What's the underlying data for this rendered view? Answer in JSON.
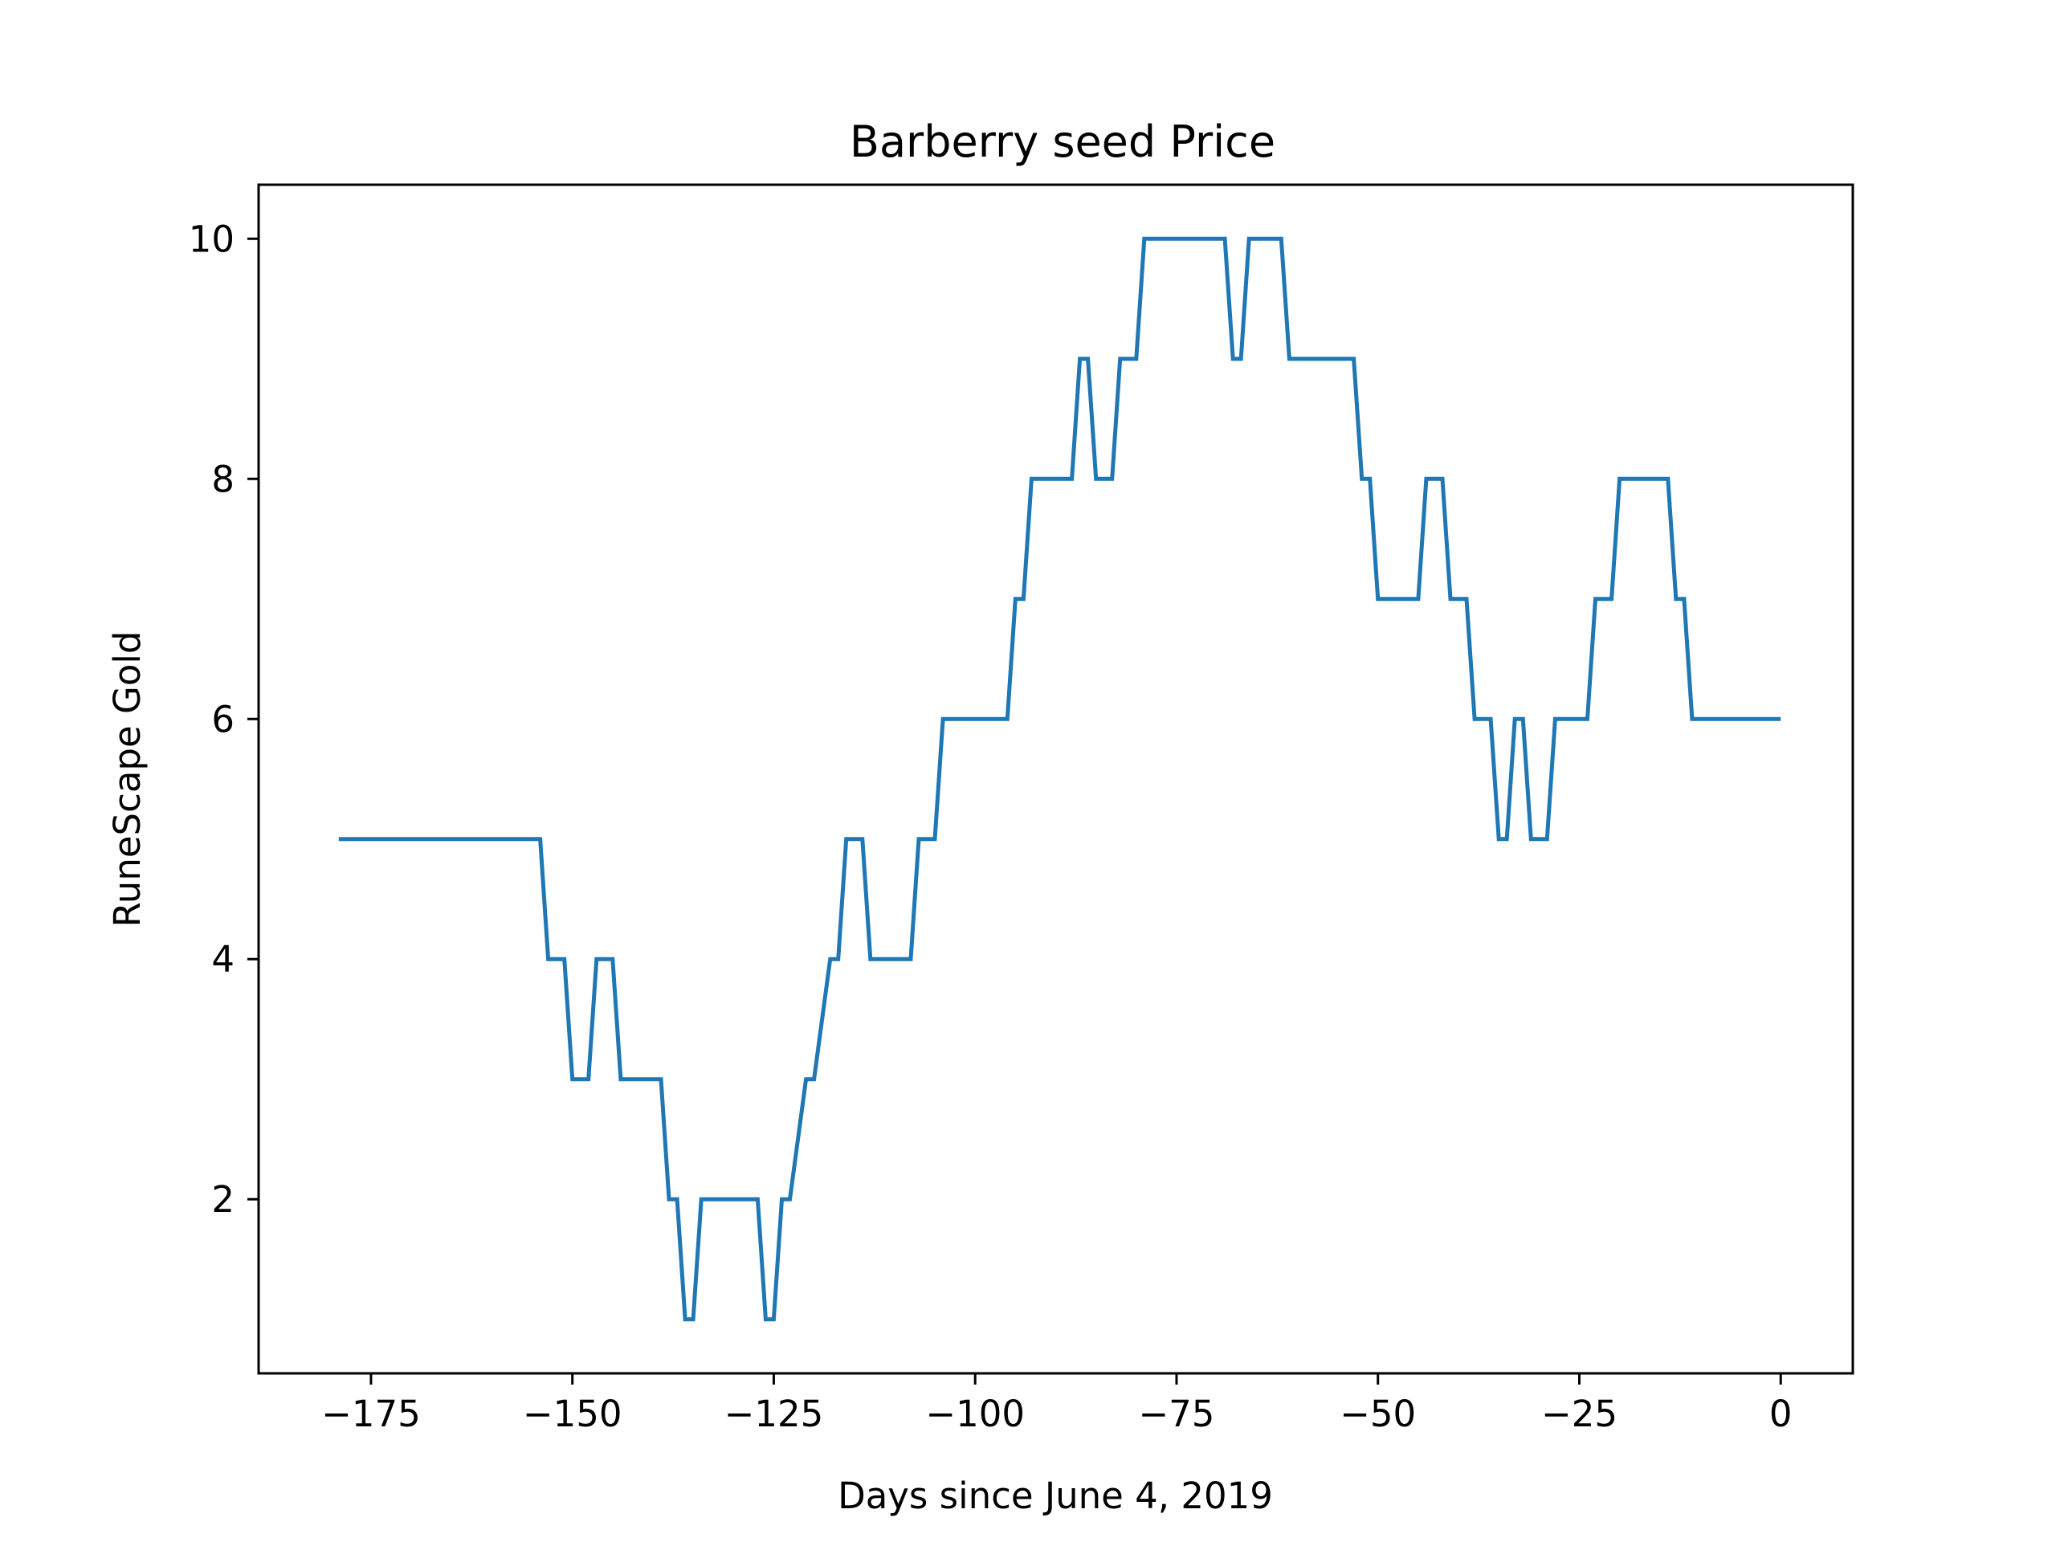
{
  "chart_data": {
    "type": "line",
    "title": "Barberry seed Price",
    "xlabel": "Days since June 4, 2019",
    "ylabel": "RuneScape Gold",
    "xlim": [
      -188.95,
      8.95
    ],
    "ylim": [
      0.55,
      10.45
    ],
    "xticks": [
      -175,
      -150,
      -125,
      -100,
      -75,
      -50,
      -25,
      0
    ],
    "xtick_labels": [
      "−175",
      "−150",
      "−125",
      "−100",
      "−75",
      "−50",
      "−25",
      "0"
    ],
    "yticks": [
      2,
      4,
      6,
      8,
      10
    ],
    "ytick_labels": [
      "2",
      "4",
      "6",
      "8",
      "10"
    ],
    "grid": false,
    "legend": "none",
    "series": [
      {
        "color": "#1f77b4",
        "x": [
          -179,
          -154,
          -153,
          -151,
          -150,
          -148,
          -147,
          -145,
          -144,
          -139,
          -138,
          -137,
          -136,
          -135,
          -134,
          -127,
          -126,
          -125,
          -124,
          -123,
          -121,
          -120,
          -118,
          -117,
          -116,
          -114,
          -113,
          -108,
          -107,
          -105,
          -104,
          -96,
          -95,
          -94,
          -93,
          -88,
          -87,
          -86,
          -85,
          -83,
          -82,
          -80,
          -79,
          -69,
          -68,
          -67,
          -66,
          -62,
          -61,
          -53,
          -52,
          -51,
          -50,
          -45,
          -44,
          -42,
          -41,
          -39,
          -38,
          -36,
          -35,
          -34,
          -33,
          -32,
          -31,
          -29,
          -28,
          -24,
          -23,
          -21,
          -20,
          -14,
          -13,
          -12,
          -11,
          -9,
          -8,
          -7,
          -6,
          -5,
          -4,
          -2,
          -1,
          0
        ],
        "y": [
          5,
          5,
          4,
          4,
          3,
          3,
          4,
          4,
          3,
          3,
          2,
          2,
          1,
          1,
          2,
          2,
          1,
          1,
          2,
          2,
          3,
          3,
          4,
          4,
          5,
          5,
          4,
          4,
          5,
          5,
          6,
          6,
          7,
          7,
          8,
          8,
          9,
          9,
          8,
          8,
          9,
          9,
          10,
          10,
          9,
          9,
          10,
          10,
          9,
          9,
          8,
          8,
          7,
          7,
          8,
          8,
          7,
          7,
          6,
          6,
          5,
          5,
          6,
          6,
          5,
          5,
          6,
          6,
          7,
          7,
          8,
          8,
          7,
          7,
          6,
          6,
          6,
          6,
          6,
          6,
          6,
          6,
          6,
          6
        ]
      }
    ]
  }
}
